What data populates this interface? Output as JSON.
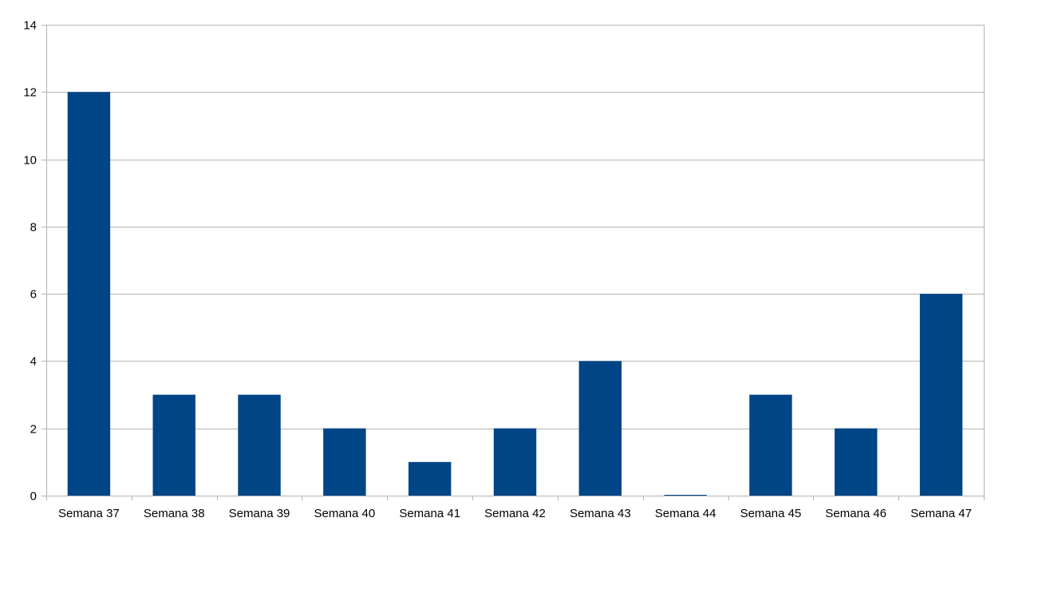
{
  "chart_data": {
    "type": "bar",
    "title": "",
    "xlabel": "",
    "ylabel": "",
    "categories": [
      "Semana 37",
      "Semana 38",
      "Semana 39",
      "Semana 40",
      "Semana 41",
      "Semana 42",
      "Semana 43",
      "Semana 44",
      "Semana 45",
      "Semana 46",
      "Semana 47"
    ],
    "values": [
      12,
      3,
      3,
      2,
      1,
      2,
      4,
      0,
      3,
      2,
      6
    ],
    "ylim": [
      0,
      14
    ],
    "yticks": [
      "0",
      "2",
      "4",
      "6",
      "8",
      "10",
      "12",
      "14"
    ],
    "grid": true,
    "legend": "none",
    "bar_color": "#004586"
  }
}
